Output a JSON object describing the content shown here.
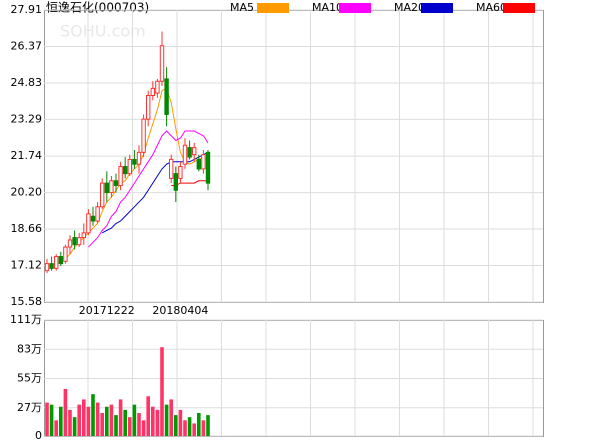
{
  "chart_data": {
    "type": "candlestick",
    "title": "恒逸石化(000703)",
    "categories": [
      null,
      null,
      null,
      null,
      null,
      null,
      null,
      null,
      null,
      null,
      null,
      null,
      null,
      "20171222",
      null,
      null,
      null,
      null,
      null,
      null,
      null,
      null,
      null,
      null,
      null,
      null,
      null,
      null,
      null,
      "20180404",
      null,
      null,
      null,
      null,
      null,
      null
    ],
    "up_color": "#ff3333",
    "down_color": "#008800",
    "open": [
      16.9,
      17.2,
      17.0,
      17.5,
      17.3,
      17.9,
      18.3,
      18.0,
      18.3,
      18.5,
      19.2,
      19.0,
      19.6,
      20.6,
      20.2,
      20.7,
      20.5,
      21.3,
      21.0,
      21.6,
      21.4,
      21.9,
      23.3,
      24.3,
      24.4,
      24.9,
      25.0,
      20.8,
      21.0,
      20.8,
      21.4,
      22.1,
      21.8,
      21.6,
      21.2,
      21.9
    ],
    "high": [
      17.4,
      17.5,
      17.6,
      17.7,
      18.0,
      18.4,
      18.6,
      18.5,
      18.9,
      19.5,
      19.6,
      19.8,
      20.8,
      21.1,
      20.9,
      21.0,
      21.5,
      21.7,
      21.8,
      22.0,
      22.2,
      23.5,
      24.5,
      24.9,
      25.0,
      27.0,
      25.5,
      21.8,
      21.3,
      21.5,
      22.5,
      22.4,
      22.3,
      21.8,
      22.0,
      22.0
    ],
    "low": [
      16.8,
      16.9,
      16.9,
      17.1,
      17.2,
      17.6,
      17.8,
      17.9,
      18.0,
      18.4,
      18.8,
      18.9,
      19.5,
      19.8,
      20.0,
      20.2,
      20.3,
      20.8,
      20.9,
      21.2,
      21.0,
      21.7,
      23.0,
      24.1,
      24.2,
      24.7,
      23.0,
      20.6,
      19.8,
      20.6,
      21.2,
      21.6,
      21.5,
      21.1,
      21.0,
      20.3
    ],
    "close": [
      17.2,
      17.0,
      17.5,
      17.2,
      17.9,
      18.2,
      18.0,
      18.3,
      18.5,
      19.3,
      19.0,
      19.6,
      20.6,
      20.2,
      20.7,
      20.5,
      21.3,
      21.0,
      21.6,
      21.4,
      21.9,
      23.3,
      24.3,
      24.6,
      24.9,
      26.4,
      23.5,
      21.6,
      20.3,
      21.3,
      22.2,
      21.7,
      22.1,
      21.2,
      21.8,
      20.6
    ],
    "ylim": [
      15.58,
      27.91
    ],
    "yticks": [
      27.91,
      26.37,
      24.83,
      23.29,
      21.74,
      {
        "value": 20.2,
        "label": "20.20"
      },
      18.66,
      17.12,
      15.58
    ],
    "series": [
      {
        "name": "MA5",
        "color": "#ff9900",
        "values": [
          null,
          null,
          null,
          null,
          17.4,
          17.6,
          17.9,
          18.1,
          18.3,
          18.5,
          18.7,
          18.9,
          19.4,
          19.8,
          20.0,
          20.3,
          20.6,
          20.7,
          21.0,
          21.2,
          21.4,
          21.8,
          22.5,
          23.1,
          23.7,
          24.5,
          24.6,
          24.0,
          22.9,
          21.9,
          21.5,
          21.4,
          21.5,
          21.6,
          21.7,
          21.5
        ]
      },
      {
        "name": "MA10",
        "color": "#ff00ff",
        "values": [
          null,
          null,
          null,
          null,
          null,
          null,
          null,
          null,
          null,
          17.9,
          18.1,
          18.3,
          18.6,
          18.8,
          19.2,
          19.4,
          19.8,
          20.0,
          20.3,
          20.6,
          20.9,
          21.2,
          21.5,
          21.8,
          22.2,
          22.6,
          22.8,
          22.6,
          22.4,
          22.5,
          22.8,
          22.8,
          22.8,
          22.7,
          22.6,
          22.3
        ]
      },
      {
        "name": "MA20",
        "color": "#0000cc",
        "values": [
          null,
          null,
          null,
          null,
          null,
          null,
          null,
          null,
          null,
          null,
          null,
          null,
          18.5,
          18.6,
          18.7,
          18.9,
          19.0,
          19.2,
          19.4,
          19.6,
          19.8,
          20.0,
          20.3,
          20.6,
          20.9,
          21.2,
          21.4,
          21.5,
          21.5,
          21.5,
          21.5,
          21.5,
          21.6,
          21.7,
          21.8,
          21.9
        ]
      },
      {
        "name": "MA60",
        "color": "#ff0000",
        "values": [
          null,
          null,
          null,
          null,
          null,
          null,
          null,
          null,
          null,
          null,
          null,
          null,
          null,
          null,
          null,
          null,
          null,
          null,
          null,
          null,
          null,
          null,
          null,
          null,
          null,
          null,
          null,
          20.5,
          20.5,
          20.6,
          20.6,
          20.6,
          20.6,
          20.7,
          20.7,
          20.7
        ]
      }
    ],
    "volume": {
      "values": [
        32,
        30,
        15,
        28,
        45,
        25,
        18,
        30,
        35,
        28,
        40,
        32,
        22,
        28,
        30,
        20,
        35,
        25,
        18,
        30,
        22,
        15,
        38,
        28,
        25,
        85,
        30,
        35,
        20,
        25,
        15,
        18,
        12,
        22,
        15,
        20
      ],
      "ylim": [
        0,
        111
      ],
      "yticks": [
        {
          "value": 111,
          "label": "111万"
        },
        {
          "value": 83,
          "label": "83万"
        },
        {
          "value": 55,
          "label": "55万"
        },
        {
          "value": 27,
          "label": "27万"
        },
        0
      ]
    }
  }
}
